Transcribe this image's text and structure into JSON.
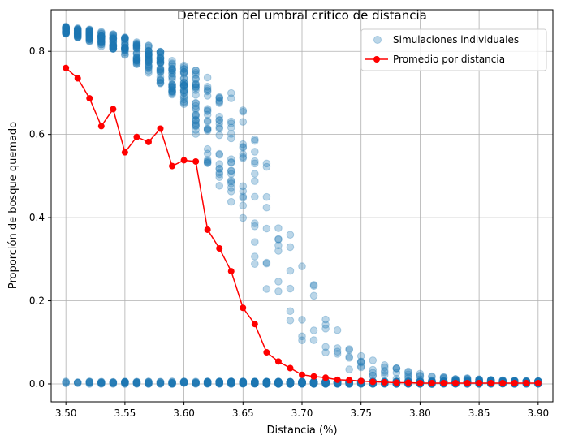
{
  "chart_data": {
    "type": "scatter",
    "title": "Detección del umbral crítico de distancia",
    "xlabel": "Distancia (%)",
    "ylabel": "Proporción de bosque quemado",
    "xlim": [
      3.4875,
      3.9125
    ],
    "ylim": [
      -0.043,
      0.9
    ],
    "xticks": [
      "3.50",
      "3.55",
      "3.60",
      "3.65",
      "3.70",
      "3.75",
      "3.80",
      "3.85",
      "3.90"
    ],
    "xtick_values": [
      3.5,
      3.55,
      3.6,
      3.65,
      3.7,
      3.75,
      3.8,
      3.85,
      3.9
    ],
    "yticks": [
      "0.0",
      "0.2",
      "0.4",
      "0.6",
      "0.8"
    ],
    "ytick_values": [
      0.0,
      0.2,
      0.4,
      0.6,
      0.8
    ],
    "grid": true,
    "legend_position": "top-right",
    "series": [
      {
        "name": "Simulaciones individuales",
        "kind": "scatter",
        "color": "#1f77b4",
        "alpha": 0.3,
        "high_band_center": [
          0.85,
          0.845,
          0.838,
          0.83,
          0.822,
          0.812,
          0.795,
          0.78,
          0.76,
          0.74,
          0.72,
          0.68,
          0.64,
          0.6,
          0.56,
          0.5,
          0.44,
          0.38,
          0.32,
          0.27,
          0.2,
          0.16,
          0.12,
          0.09,
          0.07,
          0.05,
          0.04,
          0.03,
          0.025,
          0.02,
          0.016,
          0.013,
          0.011,
          0.01,
          0.009,
          0.008,
          0.007,
          0.006,
          0.005,
          0.005,
          0.005
        ],
        "high_band_spread": [
          0.01,
          0.012,
          0.015,
          0.018,
          0.02,
          0.022,
          0.03,
          0.035,
          0.04,
          0.045,
          0.05,
          0.08,
          0.11,
          0.13,
          0.16,
          0.17,
          0.17,
          0.16,
          0.15,
          0.13,
          0.1,
          0.09,
          0.07,
          0.05,
          0.04,
          0.03,
          0.025,
          0.02,
          0.015,
          0.012,
          0.01,
          0.008,
          0.006,
          0.005,
          0.005,
          0.004,
          0.003,
          0.003,
          0.003,
          0.002,
          0.002
        ]
      },
      {
        "name": "Promedio por distancia",
        "kind": "line",
        "color": "#ff0000",
        "x": [
          3.5,
          3.51,
          3.52,
          3.53,
          3.54,
          3.55,
          3.56,
          3.57,
          3.58,
          3.59,
          3.6,
          3.61,
          3.62,
          3.63,
          3.64,
          3.65,
          3.66,
          3.67,
          3.68,
          3.69,
          3.7,
          3.71,
          3.72,
          3.73,
          3.74,
          3.75,
          3.76,
          3.77,
          3.78,
          3.79,
          3.8,
          3.81,
          3.82,
          3.83,
          3.84,
          3.85,
          3.86,
          3.87,
          3.88,
          3.89,
          3.9
        ],
        "y": [
          0.76,
          0.735,
          0.687,
          0.62,
          0.661,
          0.557,
          0.594,
          0.582,
          0.614,
          0.524,
          0.538,
          0.535,
          0.371,
          0.326,
          0.271,
          0.183,
          0.144,
          0.076,
          0.054,
          0.038,
          0.022,
          0.018,
          0.015,
          0.01,
          0.009,
          0.007,
          0.005,
          0.004,
          0.003,
          0.003,
          0.002,
          0.002,
          0.002,
          0.002,
          0.002,
          0.002,
          0.002,
          0.002,
          0.002,
          0.002,
          0.002
        ]
      }
    ]
  }
}
